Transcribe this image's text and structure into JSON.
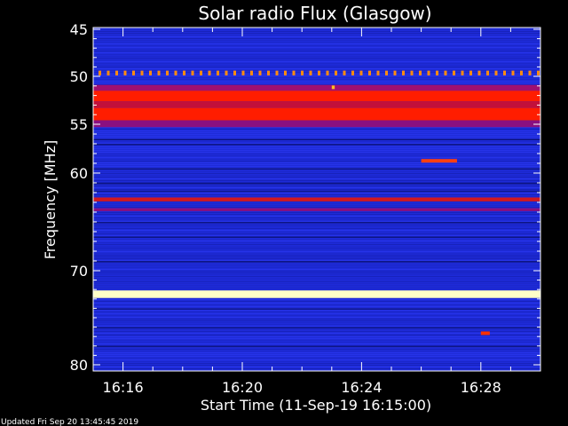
{
  "chart_data": {
    "type": "heatmap",
    "title": "Solar radio Flux (Glasgow)",
    "xlabel": "Start Time (11-Sep-19 16:15:00)",
    "ylabel": "Frequency [MHz]",
    "ylim": [
      45,
      80
    ],
    "y_ticks": [
      "45",
      "50",
      "55",
      "60",
      "70",
      "80"
    ],
    "y_tick_values": [
      45,
      50,
      55,
      60,
      70,
      80
    ],
    "x_ticks": [
      "16:16",
      "16:20",
      "16:24",
      "16:28"
    ],
    "x_tick_minutes_after_start": [
      1,
      5,
      9,
      13
    ],
    "x_range_minutes": [
      0,
      15
    ],
    "background_color": "#1e2bd8",
    "bands": [
      {
        "freq_from": 49.4,
        "freq_to": 49.9,
        "color": "#ff8c10",
        "pattern": "dashed"
      },
      {
        "freq_from": 50.9,
        "freq_to": 51.5,
        "color": "#a01070"
      },
      {
        "freq_from": 51.5,
        "freq_to": 52.6,
        "color": "#ff1d00"
      },
      {
        "freq_from": 52.6,
        "freq_to": 53.3,
        "color": "#c2103a"
      },
      {
        "freq_from": 53.3,
        "freq_to": 54.6,
        "color": "#ff1d00"
      },
      {
        "freq_from": 54.6,
        "freq_to": 55.3,
        "color": "#8a1080"
      },
      {
        "freq_from": 62.5,
        "freq_to": 62.9,
        "color": "#d01820"
      },
      {
        "freq_from": 63.6,
        "freq_to": 63.9,
        "color": "#8a1080"
      },
      {
        "freq_from": 72.1,
        "freq_to": 72.9,
        "color": "#ffffc8"
      }
    ],
    "bursts": [
      {
        "time_from": 11.0,
        "time_to": 12.2,
        "freq": 58.7,
        "color": "#ff4010"
      },
      {
        "time_from": 8.0,
        "time_to": 8.1,
        "freq": 51.1,
        "color": "#ffc020"
      },
      {
        "time_from": 13.0,
        "time_to": 13.3,
        "freq": 76.6,
        "color": "#ff3000"
      }
    ]
  },
  "footer": {
    "updated": "Updated Fri Sep 20 13:45:45 2019"
  }
}
